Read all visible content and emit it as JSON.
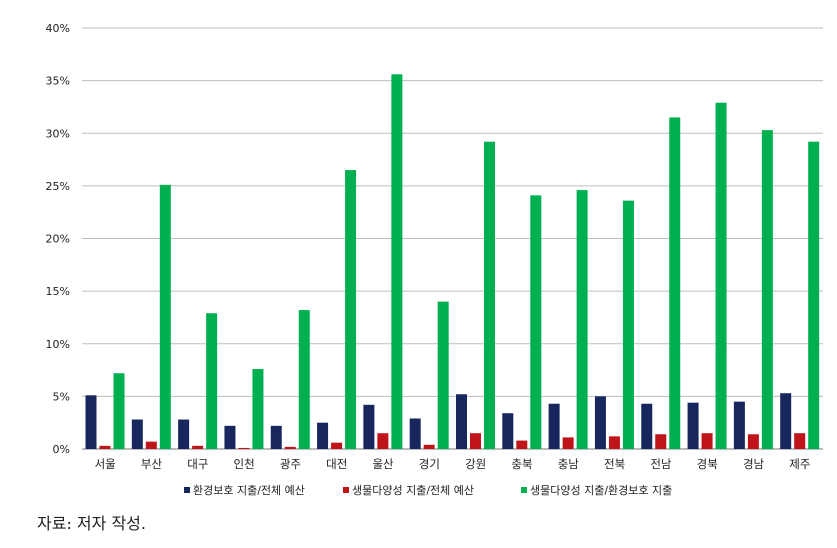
{
  "chart_data": {
    "type": "bar",
    "categories": [
      "서울",
      "부산",
      "대구",
      "인천",
      "광주",
      "대전",
      "울산",
      "경기",
      "강원",
      "충북",
      "충남",
      "전북",
      "전남",
      "경북",
      "경남",
      "제주"
    ],
    "series": [
      {
        "name": "환경보호 지출/전체 예산",
        "color": "#17275e",
        "values": [
          5.1,
          2.8,
          2.8,
          2.2,
          2.2,
          2.5,
          4.2,
          2.9,
          5.2,
          3.4,
          4.3,
          5.0,
          4.3,
          4.4,
          4.5,
          5.3
        ]
      },
      {
        "name": "생물다양성 지출/전체 예산",
        "color": "#c0141b",
        "values": [
          0.3,
          0.7,
          0.3,
          0.1,
          0.2,
          0.6,
          1.5,
          0.4,
          1.5,
          0.8,
          1.1,
          1.2,
          1.4,
          1.5,
          1.4,
          1.5
        ]
      },
      {
        "name": "생물다양성 지출/환경보호 지출",
        "color": "#00b050",
        "values": [
          7.2,
          25.1,
          12.9,
          7.6,
          13.2,
          26.5,
          35.6,
          14.0,
          29.2,
          24.1,
          24.6,
          23.6,
          31.5,
          32.9,
          30.3,
          29.2
        ]
      }
    ],
    "yticks": [
      "0%",
      "5%",
      "10%",
      "15%",
      "20%",
      "25%",
      "30%",
      "35%",
      "40%"
    ],
    "ylim": [
      0,
      40
    ],
    "grid": true,
    "legend_position": "bottom"
  },
  "source_note": "자료: 저자 작성."
}
